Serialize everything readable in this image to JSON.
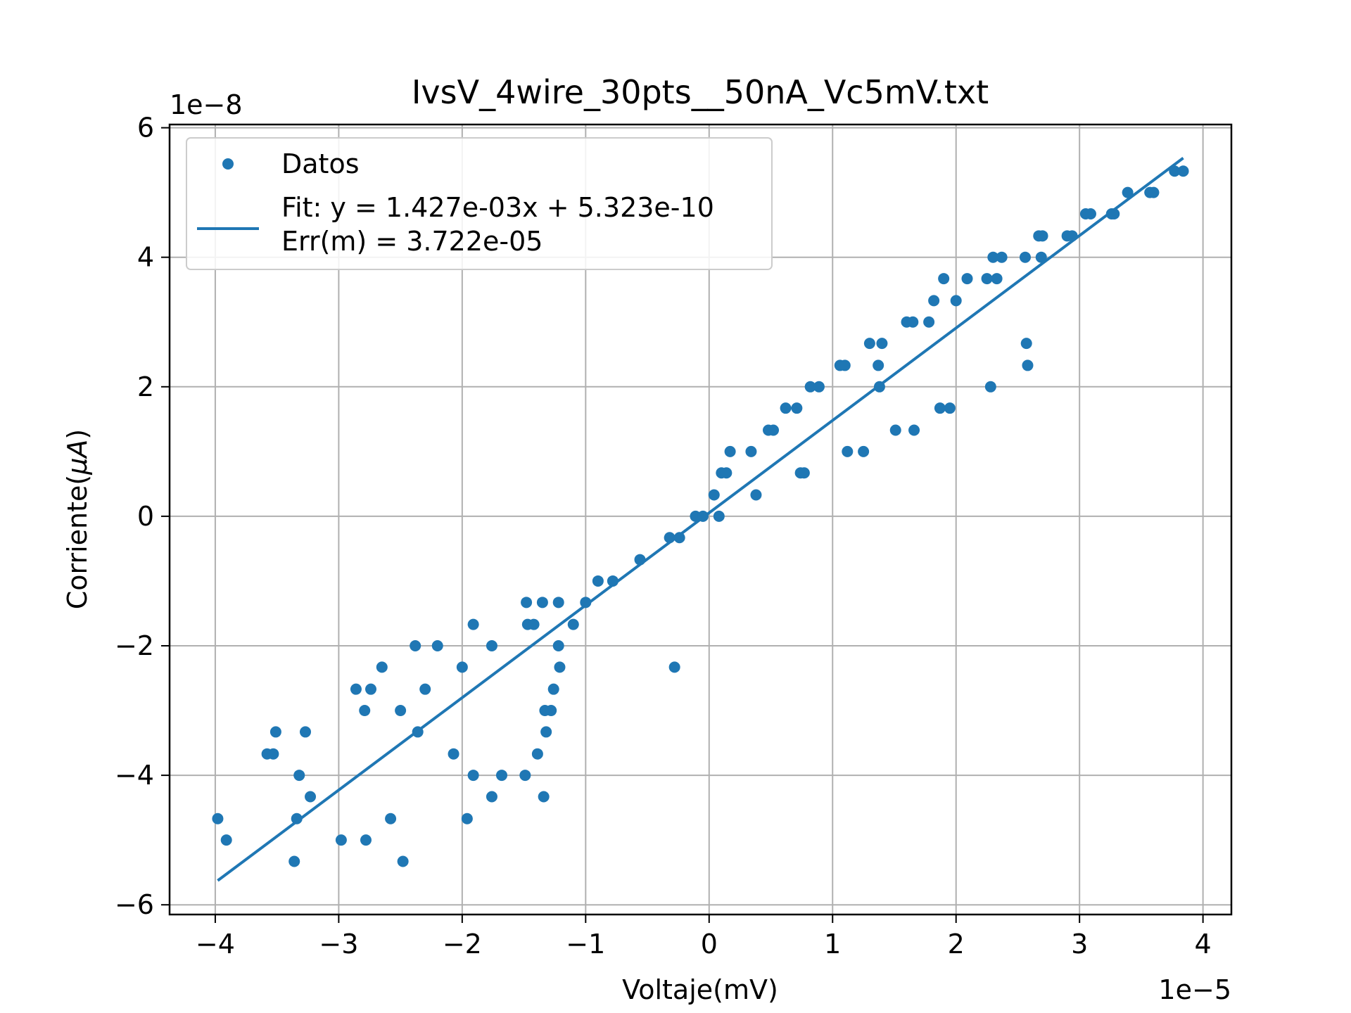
{
  "chart_data": {
    "type": "scatter",
    "title": "IvsV_4wire_30pts__50nA_Vc5mV.txt",
    "xlabel": "Voltaje(mV)",
    "ylabel_prefix": "Corriente(",
    "ylabel_mu": "μ",
    "ylabel_unit": "A",
    "ylabel_suffix": ")",
    "x_offset_text": "1e−5",
    "y_offset_text": "1e−8",
    "xlim": [
      -4.37,
      4.23
    ],
    "ylim": [
      -6.15,
      6.05
    ],
    "xticks": [
      -4,
      -3,
      -2,
      -1,
      0,
      1,
      2,
      3,
      4
    ],
    "xtick_labels": [
      "−4",
      "−3",
      "−2",
      "−1",
      "0",
      "1",
      "2",
      "3",
      "4"
    ],
    "yticks": [
      -6,
      -4,
      -2,
      0,
      2,
      4,
      6
    ],
    "ytick_labels": [
      "−6",
      "−4",
      "−2",
      "0",
      "2",
      "4",
      "6"
    ],
    "grid": true,
    "legend_position": "upper-left",
    "colors": {
      "series": "#1f77b4",
      "grid": "#b0b0b0",
      "legend_border": "#cccccc"
    },
    "series": [
      {
        "name": "Datos",
        "kind": "scatter",
        "points": [
          [
            -3.98,
            -4.67
          ],
          [
            -3.91,
            -5.0
          ],
          [
            -3.58,
            -3.67
          ],
          [
            -3.53,
            -3.67
          ],
          [
            -3.51,
            -3.33
          ],
          [
            -3.36,
            -5.33
          ],
          [
            -3.34,
            -4.67
          ],
          [
            -3.32,
            -4.0
          ],
          [
            -3.27,
            -3.33
          ],
          [
            -3.23,
            -4.33
          ],
          [
            -2.98,
            -5.0
          ],
          [
            -2.86,
            -2.67
          ],
          [
            -2.79,
            -3.0
          ],
          [
            -2.78,
            -5.0
          ],
          [
            -2.74,
            -2.67
          ],
          [
            -2.65,
            -2.33
          ],
          [
            -2.58,
            -4.67
          ],
          [
            -2.5,
            -3.0
          ],
          [
            -2.48,
            -5.33
          ],
          [
            -2.38,
            -2.0
          ],
          [
            -2.36,
            -3.33
          ],
          [
            -2.3,
            -2.67
          ],
          [
            -2.2,
            -2.0
          ],
          [
            -2.07,
            -3.67
          ],
          [
            -2.0,
            -2.33
          ],
          [
            -1.96,
            -4.67
          ],
          [
            -1.91,
            -1.67
          ],
          [
            -1.91,
            -4.0
          ],
          [
            -1.76,
            -4.33
          ],
          [
            -1.76,
            -2.0
          ],
          [
            -1.68,
            -4.0
          ],
          [
            -1.49,
            -4.0
          ],
          [
            -1.48,
            -1.33
          ],
          [
            -1.47,
            -1.67
          ],
          [
            -1.42,
            -1.67
          ],
          [
            -1.39,
            -3.67
          ],
          [
            -1.35,
            -1.33
          ],
          [
            -1.34,
            -4.33
          ],
          [
            -1.33,
            -3.0
          ],
          [
            -1.32,
            -3.33
          ],
          [
            -1.28,
            -3.0
          ],
          [
            -1.26,
            -2.67
          ],
          [
            -1.22,
            -1.33
          ],
          [
            -1.22,
            -2.0
          ],
          [
            -1.21,
            -2.33
          ],
          [
            -1.1,
            -1.67
          ],
          [
            -1.0,
            -1.33
          ],
          [
            -0.9,
            -1.0
          ],
          [
            -0.78,
            -1.0
          ],
          [
            -0.56,
            -0.67
          ],
          [
            -0.32,
            -0.33
          ],
          [
            -0.28,
            -2.33
          ],
          [
            -0.24,
            -0.33
          ],
          [
            -0.11,
            0.0
          ],
          [
            -0.05,
            0.0
          ],
          [
            0.04,
            0.33
          ],
          [
            0.08,
            0.0
          ],
          [
            0.1,
            0.67
          ],
          [
            0.14,
            0.67
          ],
          [
            0.17,
            1.0
          ],
          [
            0.34,
            1.0
          ],
          [
            0.38,
            0.33
          ],
          [
            0.48,
            1.33
          ],
          [
            0.52,
            1.33
          ],
          [
            0.62,
            1.67
          ],
          [
            0.71,
            1.67
          ],
          [
            0.74,
            0.67
          ],
          [
            0.77,
            0.67
          ],
          [
            0.82,
            2.0
          ],
          [
            0.89,
            2.0
          ],
          [
            1.06,
            2.33
          ],
          [
            1.1,
            2.33
          ],
          [
            1.12,
            1.0
          ],
          [
            1.25,
            1.0
          ],
          [
            1.3,
            2.67
          ],
          [
            1.37,
            2.33
          ],
          [
            1.38,
            2.0
          ],
          [
            1.4,
            2.67
          ],
          [
            1.51,
            1.33
          ],
          [
            1.6,
            3.0
          ],
          [
            1.65,
            3.0
          ],
          [
            1.66,
            1.33
          ],
          [
            1.78,
            3.0
          ],
          [
            1.82,
            3.33
          ],
          [
            1.87,
            1.67
          ],
          [
            1.9,
            3.67
          ],
          [
            1.95,
            1.67
          ],
          [
            2.0,
            3.33
          ],
          [
            2.09,
            3.67
          ],
          [
            2.25,
            3.67
          ],
          [
            2.28,
            2.0
          ],
          [
            2.3,
            4.0
          ],
          [
            2.33,
            3.67
          ],
          [
            2.37,
            4.0
          ],
          [
            2.56,
            4.0
          ],
          [
            2.57,
            2.67
          ],
          [
            2.58,
            2.33
          ],
          [
            2.67,
            4.33
          ],
          [
            2.69,
            4.0
          ],
          [
            2.7,
            4.33
          ],
          [
            2.9,
            4.33
          ],
          [
            2.94,
            4.33
          ],
          [
            3.05,
            4.67
          ],
          [
            3.09,
            4.67
          ],
          [
            3.26,
            4.67
          ],
          [
            3.28,
            4.67
          ],
          [
            3.39,
            5.0
          ],
          [
            3.57,
            5.0
          ],
          [
            3.6,
            5.0
          ],
          [
            3.77,
            5.33
          ],
          [
            3.84,
            5.33
          ]
        ]
      },
      {
        "name": "Fit: y = 1.427e-03x + 5.323e-10",
        "name_line2": "Err(m) = 3.722e-05",
        "kind": "line",
        "slope": 1.427,
        "intercept": 0.05323,
        "x_range": [
          -3.98,
          3.84
        ]
      }
    ]
  }
}
